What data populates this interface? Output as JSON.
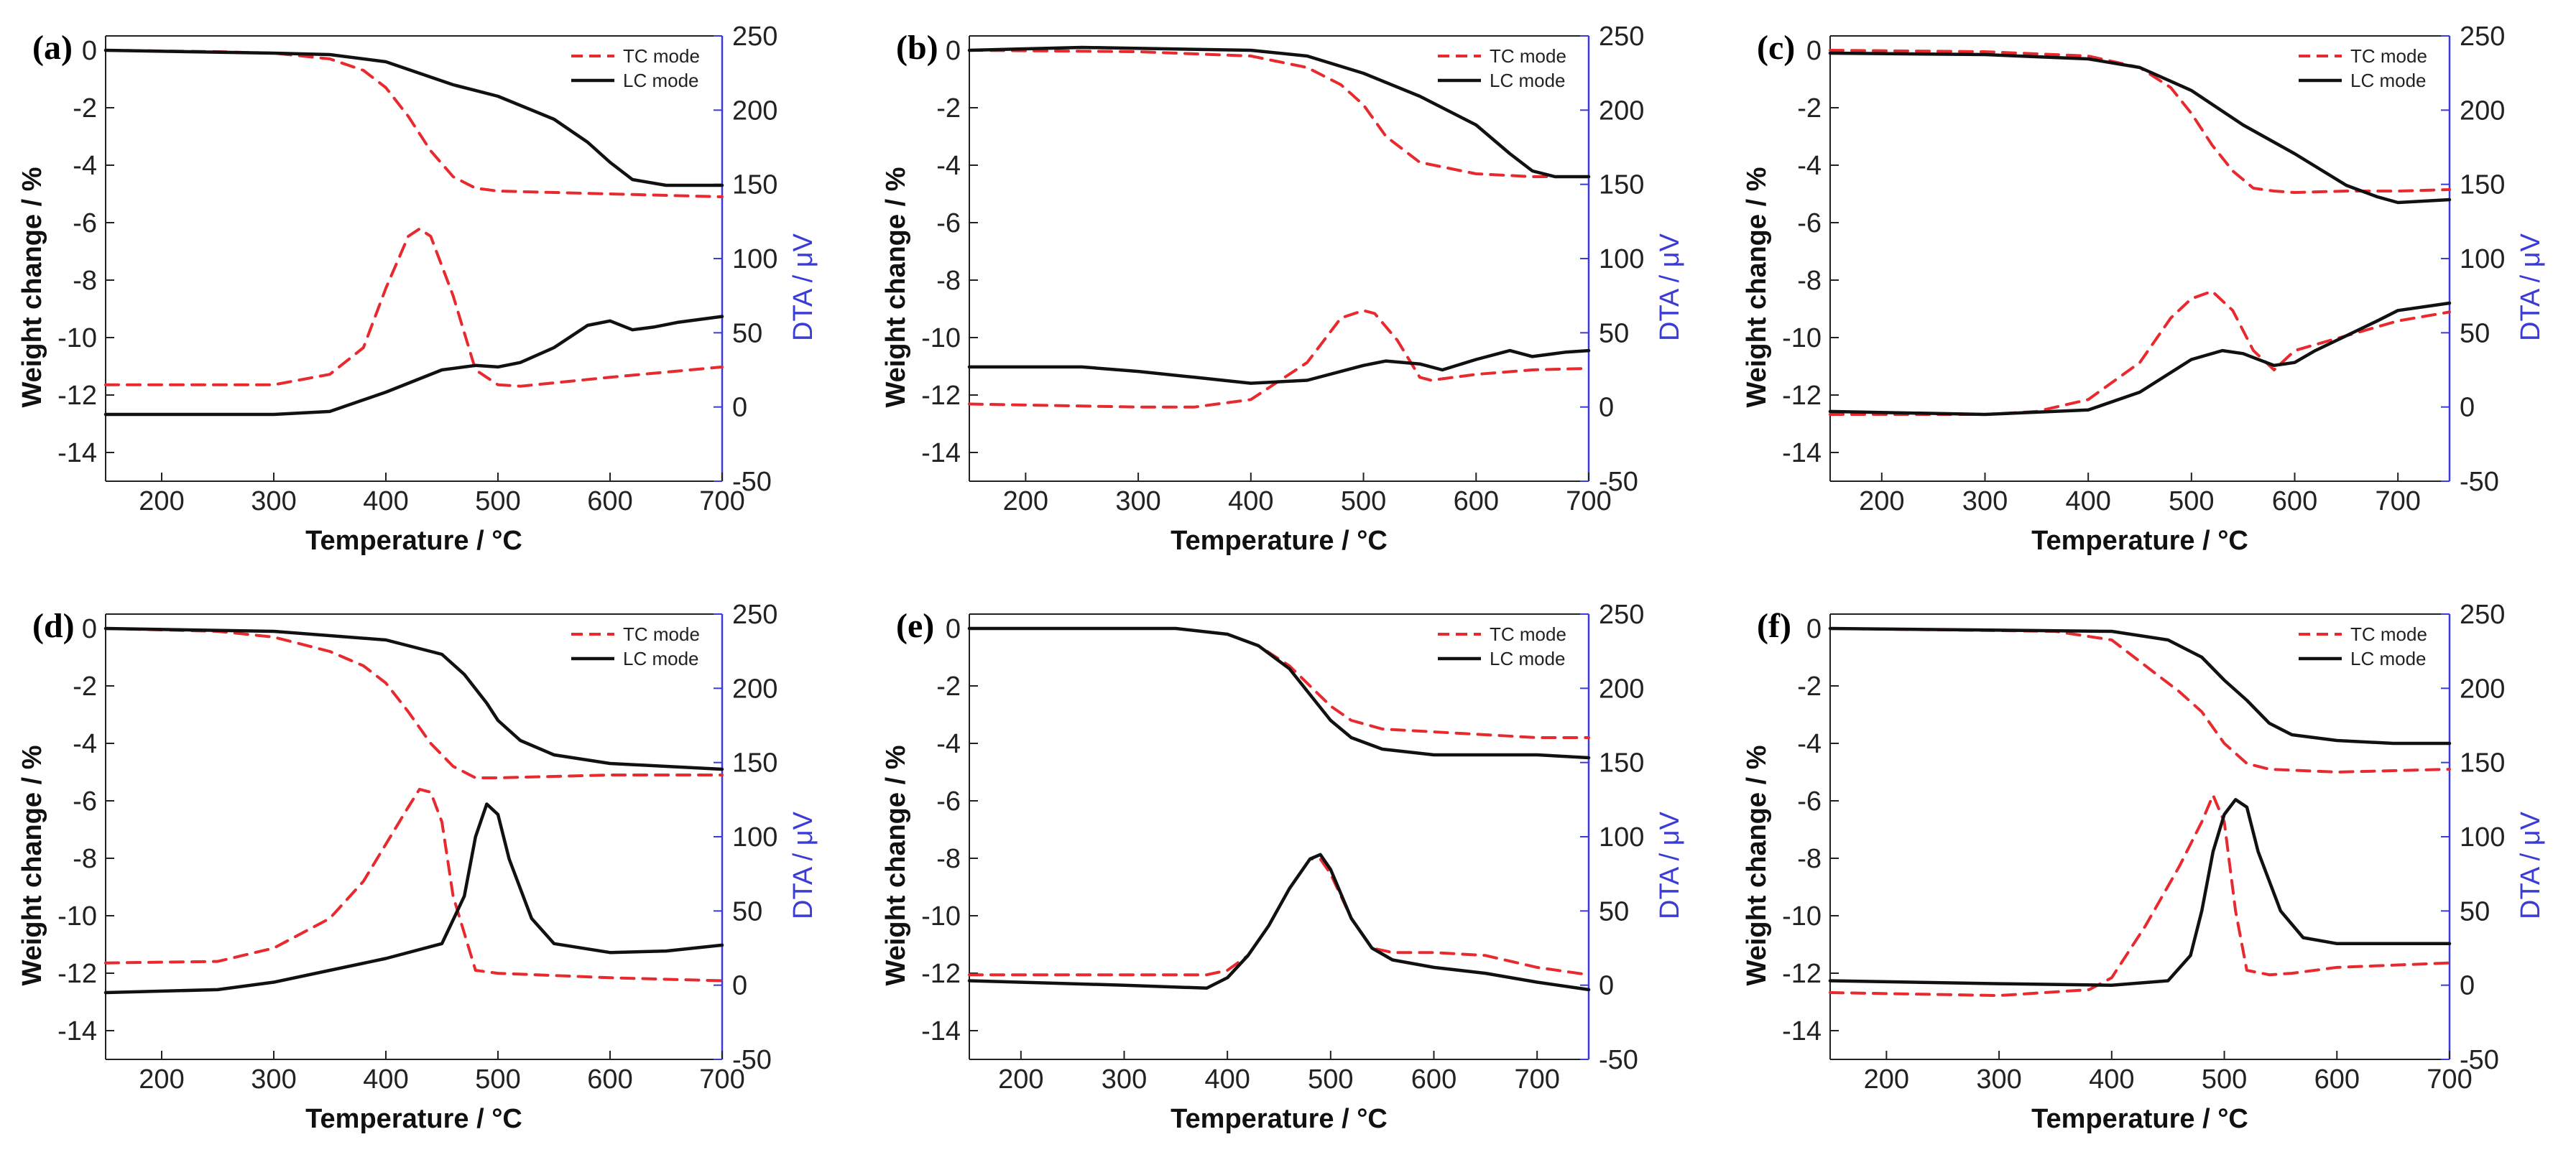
{
  "figure": {
    "colors": {
      "tc": "#e8292e",
      "lc": "#111111",
      "dta_axis": "#3b3bd6",
      "axis": "#222222"
    }
  },
  "chart_data": [
    {
      "type": "line",
      "panel": "(a)",
      "xlabel": "Temperature / °C",
      "ylabel": "Weight change / %",
      "y2label": "DTA / μV",
      "xlim": [
        150,
        700
      ],
      "ylim": [
        -15,
        0.5
      ],
      "y2lim": [
        -50,
        250
      ],
      "xticks": [
        200,
        300,
        400,
        500,
        600,
        700
      ],
      "yticks": [
        0,
        -2,
        -4,
        -6,
        -8,
        -10,
        -12,
        -14
      ],
      "y2ticks": [
        250,
        200,
        150,
        100,
        50,
        0,
        -50
      ],
      "legend": [
        "TC mode",
        "LC mode"
      ],
      "series": [
        {
          "name": "TC mode",
          "role": "weight",
          "x": [
            150,
            250,
            300,
            350,
            380,
            400,
            420,
            440,
            460,
            480,
            500,
            600,
            700
          ],
          "y": [
            0,
            -0.05,
            -0.1,
            -0.3,
            -0.7,
            -1.3,
            -2.3,
            -3.5,
            -4.4,
            -4.8,
            -4.9,
            -5.0,
            -5.1
          ]
        },
        {
          "name": "LC mode",
          "role": "weight",
          "x": [
            150,
            300,
            350,
            400,
            430,
            460,
            500,
            550,
            580,
            600,
            620,
            650,
            700
          ],
          "y": [
            0,
            -0.1,
            -0.15,
            -0.4,
            -0.8,
            -1.2,
            -1.6,
            -2.4,
            -3.2,
            -3.9,
            -4.5,
            -4.7,
            -4.7
          ]
        },
        {
          "name": "TC mode",
          "role": "dta",
          "x": [
            150,
            300,
            350,
            380,
            400,
            420,
            430,
            440,
            460,
            480,
            500,
            520,
            600,
            700
          ],
          "y": [
            15,
            15,
            22,
            40,
            80,
            115,
            120,
            115,
            75,
            25,
            15,
            14,
            20,
            27
          ]
        },
        {
          "name": "LC mode",
          "role": "dta",
          "x": [
            150,
            300,
            350,
            400,
            450,
            480,
            500,
            520,
            550,
            580,
            600,
            620,
            640,
            660,
            700
          ],
          "y": [
            -5,
            -5,
            -3,
            10,
            25,
            28,
            27,
            30,
            40,
            55,
            58,
            52,
            54,
            57,
            61
          ]
        }
      ]
    },
    {
      "type": "line",
      "panel": "(b)",
      "xlabel": "Temperature / °C",
      "ylabel": "Weight change / %",
      "y2label": "DTA / μV",
      "xlim": [
        150,
        700
      ],
      "ylim": [
        -15,
        0.5
      ],
      "y2lim": [
        -50,
        250
      ],
      "xticks": [
        200,
        300,
        400,
        500,
        600,
        700
      ],
      "yticks": [
        0,
        -2,
        -4,
        -6,
        -8,
        -10,
        -12,
        -14
      ],
      "y2ticks": [
        250,
        200,
        150,
        100,
        50,
        0,
        -50
      ],
      "legend": [
        "TC mode",
        "LC mode"
      ],
      "series": [
        {
          "name": "TC mode",
          "role": "weight",
          "x": [
            150,
            300,
            400,
            450,
            480,
            500,
            520,
            550,
            600,
            650,
            700
          ],
          "y": [
            0,
            -0.05,
            -0.2,
            -0.6,
            -1.2,
            -1.9,
            -3.0,
            -3.9,
            -4.3,
            -4.4,
            -4.4
          ]
        },
        {
          "name": "LC mode",
          "role": "weight",
          "x": [
            150,
            250,
            400,
            450,
            500,
            550,
            600,
            630,
            650,
            670,
            700
          ],
          "y": [
            0,
            0.1,
            0,
            -0.2,
            -0.8,
            -1.6,
            -2.6,
            -3.6,
            -4.2,
            -4.4,
            -4.4
          ]
        },
        {
          "name": "TC mode",
          "role": "dta",
          "x": [
            150,
            300,
            350,
            400,
            450,
            480,
            500,
            510,
            530,
            550,
            560,
            600,
            650,
            700
          ],
          "y": [
            2,
            0,
            0,
            5,
            30,
            60,
            65,
            63,
            45,
            20,
            18,
            22,
            25,
            26
          ]
        },
        {
          "name": "LC mode",
          "role": "dta",
          "x": [
            150,
            250,
            300,
            350,
            400,
            450,
            500,
            520,
            550,
            570,
            600,
            630,
            650,
            680,
            700
          ],
          "y": [
            27,
            27,
            24,
            20,
            16,
            18,
            28,
            31,
            29,
            25,
            32,
            38,
            34,
            37,
            38
          ]
        }
      ]
    },
    {
      "type": "line",
      "panel": "(c)",
      "xlabel": "Temperature / °C",
      "ylabel": "Weight change / %",
      "y2label": "DTA / μV",
      "xlim": [
        150,
        750
      ],
      "ylim": [
        -15,
        0.5
      ],
      "y2lim": [
        -50,
        250
      ],
      "xticks": [
        200,
        300,
        400,
        500,
        600,
        700
      ],
      "yticks": [
        0,
        -2,
        -4,
        -6,
        -8,
        -10,
        -12,
        -14
      ],
      "y2ticks": [
        250,
        200,
        150,
        100,
        50,
        0,
        -50
      ],
      "legend": [
        "TC mode",
        "LC mode"
      ],
      "series": [
        {
          "name": "TC mode",
          "role": "weight",
          "x": [
            150,
            300,
            400,
            450,
            480,
            500,
            520,
            540,
            560,
            580,
            600,
            650,
            700,
            750
          ],
          "y": [
            0,
            -0.05,
            -0.2,
            -0.6,
            -1.3,
            -2.2,
            -3.3,
            -4.2,
            -4.8,
            -4.9,
            -4.95,
            -4.9,
            -4.9,
            -4.85
          ]
        },
        {
          "name": "LC mode",
          "role": "weight",
          "x": [
            150,
            300,
            400,
            450,
            500,
            550,
            600,
            650,
            680,
            700,
            750
          ],
          "y": [
            -0.1,
            -0.15,
            -0.3,
            -0.6,
            -1.4,
            -2.6,
            -3.6,
            -4.7,
            -5.1,
            -5.3,
            -5.2
          ]
        },
        {
          "name": "TC mode",
          "role": "dta",
          "x": [
            150,
            300,
            350,
            400,
            450,
            480,
            500,
            520,
            540,
            560,
            580,
            600,
            650,
            700,
            750
          ],
          "y": [
            -5,
            -5,
            -3,
            5,
            30,
            60,
            73,
            78,
            65,
            38,
            25,
            38,
            48,
            58,
            64
          ]
        },
        {
          "name": "LC mode",
          "role": "dta",
          "x": [
            150,
            300,
            400,
            450,
            500,
            530,
            550,
            580,
            600,
            620,
            650,
            680,
            700,
            750
          ],
          "y": [
            -3,
            -5,
            -2,
            10,
            32,
            38,
            36,
            28,
            30,
            38,
            48,
            58,
            65,
            70
          ]
        }
      ]
    },
    {
      "type": "line",
      "panel": "(d)",
      "xlabel": "Temperature / °C",
      "ylabel": "Weight change / %",
      "y2label": "DTA / μV",
      "xlim": [
        150,
        700
      ],
      "ylim": [
        -15,
        0.5
      ],
      "y2lim": [
        -50,
        250
      ],
      "xticks": [
        200,
        300,
        400,
        500,
        600,
        700
      ],
      "yticks": [
        0,
        -2,
        -4,
        -6,
        -8,
        -10,
        -12,
        -14
      ],
      "y2ticks": [
        250,
        200,
        150,
        100,
        50,
        0,
        -50
      ],
      "legend": [
        "TC mode",
        "LC mode"
      ],
      "series": [
        {
          "name": "TC mode",
          "role": "weight",
          "x": [
            150,
            250,
            300,
            350,
            380,
            400,
            420,
            440,
            460,
            480,
            500,
            600,
            700
          ],
          "y": [
            0,
            -0.1,
            -0.3,
            -0.8,
            -1.3,
            -1.9,
            -2.9,
            -4.0,
            -4.8,
            -5.2,
            -5.2,
            -5.1,
            -5.1
          ]
        },
        {
          "name": "LC mode",
          "role": "weight",
          "x": [
            150,
            300,
            400,
            450,
            470,
            490,
            500,
            520,
            550,
            600,
            650,
            700
          ],
          "y": [
            0,
            -0.1,
            -0.4,
            -0.9,
            -1.6,
            -2.6,
            -3.2,
            -3.9,
            -4.4,
            -4.7,
            -4.8,
            -4.9
          ]
        },
        {
          "name": "TC mode",
          "role": "dta",
          "x": [
            150,
            250,
            300,
            350,
            380,
            400,
            420,
            430,
            440,
            450,
            460,
            480,
            500,
            600,
            700
          ],
          "y": [
            15,
            16,
            25,
            45,
            70,
            95,
            120,
            132,
            130,
            110,
            60,
            10,
            8,
            5,
            3
          ]
        },
        {
          "name": "LC mode",
          "role": "dta",
          "x": [
            150,
            250,
            300,
            350,
            400,
            450,
            470,
            480,
            490,
            500,
            510,
            530,
            550,
            600,
            650,
            700
          ],
          "y": [
            -5,
            -3,
            2,
            10,
            18,
            28,
            60,
            100,
            122,
            115,
            85,
            45,
            28,
            22,
            23,
            27
          ]
        }
      ]
    },
    {
      "type": "line",
      "panel": "(e)",
      "xlabel": "Temperature / °C",
      "ylabel": "Weight change / %",
      "y2label": "DTA / μV",
      "xlim": [
        150,
        750
      ],
      "ylim": [
        -15,
        0.5
      ],
      "y2lim": [
        -50,
        250
      ],
      "xticks": [
        200,
        300,
        400,
        500,
        600,
        700
      ],
      "yticks": [
        0,
        -2,
        -4,
        -6,
        -8,
        -10,
        -12,
        -14
      ],
      "y2ticks": [
        250,
        200,
        150,
        100,
        50,
        0,
        -50
      ],
      "legend": [
        "TC mode",
        "LC mode"
      ],
      "series": [
        {
          "name": "TC mode",
          "role": "weight",
          "x": [
            150,
            350,
            400,
            430,
            460,
            480,
            500,
            520,
            550,
            600,
            650,
            700,
            750
          ],
          "y": [
            0,
            0,
            -0.2,
            -0.6,
            -1.3,
            -2.0,
            -2.7,
            -3.2,
            -3.5,
            -3.6,
            -3.7,
            -3.8,
            -3.8
          ]
        },
        {
          "name": "LC mode",
          "role": "weight",
          "x": [
            150,
            350,
            400,
            430,
            460,
            480,
            500,
            520,
            550,
            600,
            650,
            700,
            750
          ],
          "y": [
            0,
            0,
            -0.2,
            -0.6,
            -1.4,
            -2.3,
            -3.2,
            -3.8,
            -4.2,
            -4.4,
            -4.4,
            -4.4,
            -4.5
          ]
        },
        {
          "name": "TC mode",
          "role": "dta",
          "x": [
            150,
            300,
            380,
            400,
            420,
            440,
            460,
            480,
            490,
            500,
            520,
            540,
            560,
            600,
            650,
            700,
            750
          ],
          "y": [
            7,
            7,
            7,
            10,
            20,
            40,
            65,
            85,
            85,
            75,
            45,
            25,
            22,
            22,
            20,
            12,
            7
          ]
        },
        {
          "name": "LC mode",
          "role": "dta",
          "x": [
            150,
            300,
            380,
            400,
            420,
            440,
            460,
            480,
            490,
            500,
            520,
            540,
            560,
            600,
            650,
            700,
            750
          ],
          "y": [
            3,
            0,
            -2,
            5,
            20,
            40,
            65,
            85,
            88,
            78,
            45,
            25,
            17,
            12,
            8,
            2,
            -3
          ]
        }
      ]
    },
    {
      "type": "line",
      "panel": "(f)",
      "xlabel": "Temperature / °C",
      "ylabel": "Weight change / %",
      "y2label": "DTA / μV",
      "xlim": [
        150,
        700
      ],
      "ylim": [
        -15,
        0.5
      ],
      "y2lim": [
        -50,
        250
      ],
      "xticks": [
        200,
        300,
        400,
        500,
        600,
        700
      ],
      "yticks": [
        0,
        -2,
        -4,
        -6,
        -8,
        -10,
        -12,
        -14
      ],
      "y2ticks": [
        250,
        200,
        150,
        100,
        50,
        0,
        -50
      ],
      "legend": [
        "TC mode",
        "LC mode"
      ],
      "series": [
        {
          "name": "TC mode",
          "role": "weight",
          "x": [
            150,
            350,
            400,
            420,
            440,
            460,
            480,
            500,
            520,
            540,
            600,
            700
          ],
          "y": [
            0,
            -0.1,
            -0.4,
            -1.0,
            -1.6,
            -2.2,
            -2.9,
            -4.0,
            -4.7,
            -4.9,
            -5.0,
            -4.9
          ]
        },
        {
          "name": "LC mode",
          "role": "weight",
          "x": [
            150,
            400,
            450,
            480,
            500,
            520,
            540,
            560,
            600,
            650,
            700
          ],
          "y": [
            0,
            -0.1,
            -0.4,
            -1.0,
            -1.8,
            -2.5,
            -3.3,
            -3.7,
            -3.9,
            -4.0,
            -4.0
          ]
        },
        {
          "name": "TC mode",
          "role": "dta",
          "x": [
            150,
            300,
            380,
            400,
            430,
            460,
            480,
            490,
            500,
            510,
            520,
            540,
            560,
            600,
            700
          ],
          "y": [
            -5,
            -7,
            -3,
            5,
            40,
            80,
            110,
            128,
            110,
            50,
            10,
            7,
            8,
            12,
            15
          ]
        },
        {
          "name": "LC mode",
          "role": "dta",
          "x": [
            150,
            300,
            400,
            450,
            470,
            480,
            490,
            500,
            510,
            520,
            530,
            550,
            570,
            600,
            700
          ],
          "y": [
            3,
            1,
            0,
            3,
            20,
            50,
            90,
            115,
            125,
            120,
            90,
            50,
            32,
            28,
            28
          ]
        }
      ]
    }
  ]
}
